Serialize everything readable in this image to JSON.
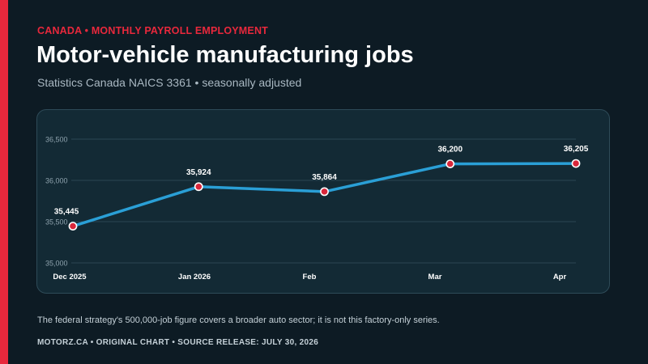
{
  "header": {
    "kicker": "CANADA • MONTHLY PAYROLL EMPLOYMENT",
    "title": "Motor-vehicle manufacturing jobs",
    "subtitle": "Statistics Canada NAICS 3361 • seasonally adjusted"
  },
  "note": "The federal strategy's 500,000-job figure covers a broader auto sector; it is not this factory-only series.",
  "footer": "MOTORZ.CA • ORIGINAL CHART • SOURCE RELEASE: JULY 30, 2026",
  "colors": {
    "accent": "#e8283c",
    "line": "#2a9fd6",
    "marker_fill": "#d9263a",
    "background": "#0d1b24",
    "panel": "#132a35"
  },
  "chart_data": {
    "type": "line",
    "categories": [
      "Dec 2025",
      "Jan 2026",
      "Feb",
      "Mar",
      "Apr"
    ],
    "values": [
      35445,
      35924,
      35864,
      36200,
      36205
    ],
    "data_labels": [
      "35,445",
      "35,924",
      "35,864",
      "36,200",
      "36,205"
    ],
    "yticks": [
      35000,
      35500,
      36000,
      36500
    ],
    "ytick_labels": [
      "35,000",
      "35,500",
      "36,000",
      "36,500"
    ],
    "ylim": [
      35000,
      36500
    ],
    "grid": true,
    "title": "",
    "xlabel": "",
    "ylabel": ""
  }
}
